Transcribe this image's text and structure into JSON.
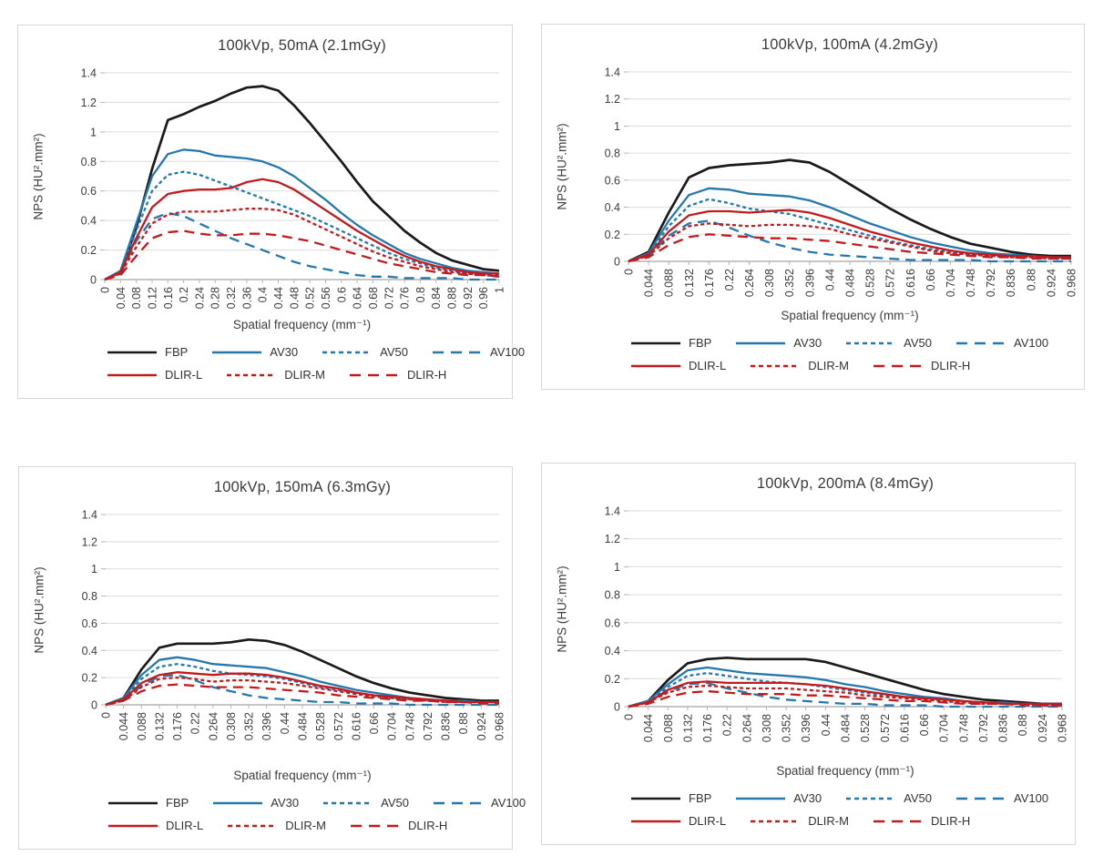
{
  "figure": {
    "description": "Noise power spectrum (NPS) curves for four CT dose levels comparing FBP, ASiR-V and DLIR reconstructions"
  },
  "legend": {
    "rows": [
      [
        "FBP",
        "AV30",
        "AV50",
        "AV100"
      ],
      [
        "DLIR-L",
        "DLIR-M",
        "DLIR-H"
      ]
    ],
    "styles": {
      "FBP": {
        "color": "#1a1a1a",
        "dash": "solid"
      },
      "AV30": {
        "color": "#2478ad",
        "dash": "solid"
      },
      "AV50": {
        "color": "#2478ad",
        "dash": "short-dash"
      },
      "AV100": {
        "color": "#2478ad",
        "dash": "long-dash"
      },
      "DLIR-L": {
        "color": "#c21b1e",
        "dash": "solid"
      },
      "DLIR-M": {
        "color": "#c21b1e",
        "dash": "short-dash"
      },
      "DLIR-H": {
        "color": "#c21b1e",
        "dash": "long-dash"
      }
    }
  },
  "chart_data": [
    {
      "type": "line",
      "title": "100kVp, 50mA (2.1mGy)",
      "xlabel": "Spatial frequency (mm⁻¹)",
      "ylabel": "NPS (HU².mm²)",
      "ylim": [
        0,
        1.4
      ],
      "yticks": [
        "0",
        "0.2",
        "0.4",
        "0.6",
        "0.8",
        "1",
        "1.2",
        "1.4"
      ],
      "grid": true,
      "legend_position": "bottom",
      "x": [
        0,
        0.04,
        0.08,
        0.12,
        0.16,
        0.2,
        0.24,
        0.28,
        0.32,
        0.36,
        0.4,
        0.44,
        0.48,
        0.52,
        0.56,
        0.6,
        0.64,
        0.68,
        0.72,
        0.76,
        0.8,
        0.84,
        0.88,
        0.92,
        0.96,
        1
      ],
      "xticks": [
        "0",
        "0.04",
        "0.08",
        "0.12",
        "0.16",
        "0.2",
        "0.24",
        "0.28",
        "0.32",
        "0.36",
        "0.4",
        "0.44",
        "0.48",
        "0.52",
        "0.56",
        "0.6",
        "0.64",
        "0.68",
        "0.72",
        "0.76",
        "0.8",
        "0.84",
        "0.88",
        "0.92",
        "0.96",
        "1"
      ],
      "series": [
        {
          "name": "FBP",
          "values": [
            0,
            0.05,
            0.35,
            0.75,
            1.08,
            1.12,
            1.17,
            1.21,
            1.26,
            1.3,
            1.31,
            1.28,
            1.18,
            1.06,
            0.93,
            0.8,
            0.66,
            0.53,
            0.43,
            0.33,
            0.25,
            0.18,
            0.13,
            0.1,
            0.07,
            0.06
          ]
        },
        {
          "name": "AV30",
          "values": [
            0,
            0.06,
            0.38,
            0.7,
            0.85,
            0.88,
            0.87,
            0.84,
            0.83,
            0.82,
            0.8,
            0.76,
            0.7,
            0.62,
            0.54,
            0.45,
            0.37,
            0.3,
            0.24,
            0.18,
            0.14,
            0.11,
            0.08,
            0.06,
            0.05,
            0.04
          ]
        },
        {
          "name": "AV50",
          "values": [
            0,
            0.05,
            0.33,
            0.6,
            0.71,
            0.73,
            0.71,
            0.67,
            0.63,
            0.59,
            0.55,
            0.51,
            0.47,
            0.43,
            0.38,
            0.33,
            0.28,
            0.23,
            0.18,
            0.14,
            0.11,
            0.08,
            0.06,
            0.04,
            0.03,
            0.02
          ]
        },
        {
          "name": "AV100",
          "values": [
            0,
            0.04,
            0.26,
            0.41,
            0.45,
            0.43,
            0.38,
            0.33,
            0.28,
            0.24,
            0.2,
            0.16,
            0.12,
            0.09,
            0.07,
            0.05,
            0.03,
            0.02,
            0.02,
            0.01,
            0.01,
            0.01,
            0.01,
            0,
            0,
            0
          ]
        },
        {
          "name": "DLIR-L",
          "values": [
            0,
            0.05,
            0.28,
            0.49,
            0.58,
            0.6,
            0.61,
            0.61,
            0.62,
            0.66,
            0.68,
            0.66,
            0.61,
            0.54,
            0.47,
            0.4,
            0.33,
            0.27,
            0.21,
            0.16,
            0.12,
            0.09,
            0.07,
            0.05,
            0.04,
            0.04
          ]
        },
        {
          "name": "DLIR-M",
          "values": [
            0,
            0.04,
            0.22,
            0.38,
            0.44,
            0.46,
            0.46,
            0.46,
            0.47,
            0.48,
            0.48,
            0.47,
            0.44,
            0.39,
            0.34,
            0.29,
            0.24,
            0.19,
            0.15,
            0.12,
            0.09,
            0.07,
            0.05,
            0.04,
            0.03,
            0.03
          ]
        },
        {
          "name": "DLIR-H",
          "values": [
            0,
            0.03,
            0.16,
            0.28,
            0.32,
            0.33,
            0.31,
            0.3,
            0.3,
            0.31,
            0.31,
            0.3,
            0.28,
            0.26,
            0.23,
            0.2,
            0.17,
            0.14,
            0.11,
            0.09,
            0.07,
            0.05,
            0.04,
            0.03,
            0.03,
            0.02
          ]
        }
      ]
    },
    {
      "type": "line",
      "title": "100kVp, 100mA (4.2mGy)",
      "xlabel": "Spatial frequency (mm⁻¹)",
      "ylabel": "NPS (HU².mm²)",
      "ylim": [
        0,
        1.4
      ],
      "yticks": [
        "0",
        "0.2",
        "0.4",
        "0.6",
        "0.8",
        "1",
        "1.2",
        "1.4"
      ],
      "grid": true,
      "legend_position": "bottom",
      "x": [
        0,
        0.044,
        0.088,
        0.132,
        0.176,
        0.22,
        0.264,
        0.308,
        0.352,
        0.396,
        0.44,
        0.484,
        0.528,
        0.572,
        0.616,
        0.66,
        0.704,
        0.748,
        0.792,
        0.836,
        0.88,
        0.924,
        0.968
      ],
      "xticks": [
        "0",
        "0.044",
        "0.088",
        "0.132",
        "0.176",
        "0.22",
        "0.264",
        "0.308",
        "0.352",
        "0.396",
        "0.44",
        "0.484",
        "0.528",
        "0.572",
        "0.616",
        "0.66",
        "0.704",
        "0.748",
        "0.792",
        "0.836",
        "0.88",
        "0.924",
        "0.968"
      ],
      "series": [
        {
          "name": "FBP",
          "values": [
            0,
            0.07,
            0.36,
            0.62,
            0.69,
            0.71,
            0.72,
            0.73,
            0.75,
            0.73,
            0.66,
            0.57,
            0.48,
            0.39,
            0.31,
            0.24,
            0.18,
            0.13,
            0.1,
            0.07,
            0.05,
            0.04,
            0.04
          ]
        },
        {
          "name": "AV30",
          "values": [
            0,
            0.06,
            0.3,
            0.49,
            0.54,
            0.53,
            0.5,
            0.49,
            0.48,
            0.45,
            0.4,
            0.34,
            0.28,
            0.23,
            0.18,
            0.14,
            0.11,
            0.08,
            0.06,
            0.05,
            0.04,
            0.03,
            0.03
          ]
        },
        {
          "name": "AV50",
          "values": [
            0,
            0.05,
            0.26,
            0.41,
            0.46,
            0.43,
            0.39,
            0.37,
            0.35,
            0.31,
            0.27,
            0.23,
            0.19,
            0.15,
            0.12,
            0.09,
            0.07,
            0.05,
            0.04,
            0.03,
            0.03,
            0.02,
            0.02
          ]
        },
        {
          "name": "AV100",
          "values": [
            0,
            0.04,
            0.19,
            0.28,
            0.3,
            0.25,
            0.19,
            0.14,
            0.1,
            0.07,
            0.05,
            0.04,
            0.03,
            0.02,
            0.01,
            0.01,
            0.01,
            0.01,
            0,
            0,
            0,
            0,
            0
          ]
        },
        {
          "name": "DLIR-L",
          "values": [
            0,
            0.05,
            0.22,
            0.34,
            0.37,
            0.37,
            0.36,
            0.37,
            0.38,
            0.36,
            0.32,
            0.27,
            0.22,
            0.18,
            0.14,
            0.11,
            0.08,
            0.06,
            0.05,
            0.04,
            0.04,
            0.03,
            0.03
          ]
        },
        {
          "name": "DLIR-M",
          "values": [
            0,
            0.04,
            0.17,
            0.26,
            0.28,
            0.27,
            0.26,
            0.27,
            0.27,
            0.26,
            0.24,
            0.2,
            0.17,
            0.14,
            0.11,
            0.08,
            0.06,
            0.05,
            0.04,
            0.03,
            0.03,
            0.02,
            0.02
          ]
        },
        {
          "name": "DLIR-H",
          "values": [
            0,
            0.03,
            0.12,
            0.18,
            0.2,
            0.19,
            0.18,
            0.17,
            0.17,
            0.16,
            0.15,
            0.13,
            0.11,
            0.09,
            0.07,
            0.06,
            0.05,
            0.04,
            0.03,
            0.03,
            0.02,
            0.02,
            0.02
          ]
        }
      ]
    },
    {
      "type": "line",
      "title": "100kVp, 150mA (6.3mGy)",
      "xlabel": "Spatial frequency (mm⁻¹)",
      "ylabel": "NPS (HU².mm²)",
      "ylim": [
        0,
        1.4
      ],
      "yticks": [
        "0",
        "0.2",
        "0.4",
        "0.6",
        "0.8",
        "1",
        "1.2",
        "1.4"
      ],
      "grid": true,
      "legend_position": "bottom",
      "x": [
        0,
        0.044,
        0.088,
        0.132,
        0.176,
        0.22,
        0.264,
        0.308,
        0.352,
        0.396,
        0.44,
        0.484,
        0.528,
        0.572,
        0.616,
        0.66,
        0.704,
        0.748,
        0.792,
        0.836,
        0.88,
        0.924,
        0.968
      ],
      "xticks": [
        "0",
        "0.044",
        "0.088",
        "0.132",
        "0.176",
        "0.22",
        "0.264",
        "0.308",
        "0.352",
        "0.396",
        "0.44",
        "0.484",
        "0.528",
        "0.572",
        "0.616",
        "0.66",
        "0.704",
        "0.748",
        "0.792",
        "0.836",
        "0.88",
        "0.924",
        "0.968"
      ],
      "series": [
        {
          "name": "FBP",
          "values": [
            0,
            0.05,
            0.26,
            0.42,
            0.45,
            0.45,
            0.45,
            0.46,
            0.48,
            0.47,
            0.44,
            0.39,
            0.33,
            0.27,
            0.21,
            0.16,
            0.12,
            0.09,
            0.07,
            0.05,
            0.04,
            0.03,
            0.03
          ]
        },
        {
          "name": "AV30",
          "values": [
            0,
            0.05,
            0.22,
            0.33,
            0.35,
            0.33,
            0.3,
            0.29,
            0.28,
            0.27,
            0.24,
            0.21,
            0.17,
            0.14,
            0.11,
            0.09,
            0.07,
            0.05,
            0.04,
            0.03,
            0.03,
            0.02,
            0.02
          ]
        },
        {
          "name": "AV50",
          "values": [
            0,
            0.04,
            0.19,
            0.28,
            0.3,
            0.28,
            0.25,
            0.23,
            0.22,
            0.21,
            0.19,
            0.16,
            0.13,
            0.11,
            0.09,
            0.07,
            0.05,
            0.04,
            0.03,
            0.03,
            0.02,
            0.02,
            0.02
          ]
        },
        {
          "name": "AV100",
          "values": [
            0,
            0.03,
            0.14,
            0.21,
            0.22,
            0.18,
            0.13,
            0.1,
            0.07,
            0.05,
            0.04,
            0.03,
            0.02,
            0.02,
            0.01,
            0.01,
            0.01,
            0,
            0,
            0,
            0,
            0,
            0
          ]
        },
        {
          "name": "DLIR-L",
          "values": [
            0,
            0.04,
            0.16,
            0.22,
            0.24,
            0.23,
            0.22,
            0.23,
            0.23,
            0.22,
            0.2,
            0.17,
            0.14,
            0.12,
            0.09,
            0.07,
            0.06,
            0.05,
            0.04,
            0.03,
            0.02,
            0.02,
            0.02
          ]
        },
        {
          "name": "DLIR-M",
          "values": [
            0,
            0.03,
            0.13,
            0.19,
            0.2,
            0.19,
            0.17,
            0.18,
            0.18,
            0.17,
            0.16,
            0.14,
            0.12,
            0.1,
            0.08,
            0.06,
            0.05,
            0.04,
            0.03,
            0.02,
            0.02,
            0.02,
            0.02
          ]
        },
        {
          "name": "DLIR-H",
          "values": [
            0,
            0.03,
            0.1,
            0.14,
            0.15,
            0.14,
            0.13,
            0.13,
            0.13,
            0.12,
            0.11,
            0.1,
            0.09,
            0.07,
            0.06,
            0.05,
            0.04,
            0.03,
            0.03,
            0.02,
            0.02,
            0.01,
            0.01
          ]
        }
      ]
    },
    {
      "type": "line",
      "title": "100kVp, 200mA (8.4mGy)",
      "xlabel": "Spatial frequency (mm⁻¹)",
      "ylabel": "NPS (HU².mm²)",
      "ylim": [
        0,
        1.4
      ],
      "yticks": [
        "0",
        "0.2",
        "0.4",
        "0.6",
        "0.8",
        "1",
        "1.2",
        "1.4"
      ],
      "grid": true,
      "legend_position": "bottom",
      "x": [
        0,
        0.044,
        0.088,
        0.132,
        0.176,
        0.22,
        0.264,
        0.308,
        0.352,
        0.396,
        0.44,
        0.484,
        0.528,
        0.572,
        0.616,
        0.66,
        0.704,
        0.748,
        0.792,
        0.836,
        0.88,
        0.924,
        0.968
      ],
      "xticks": [
        "0",
        "0.044",
        "0.088",
        "0.132",
        "0.176",
        "0.22",
        "0.264",
        "0.308",
        "0.352",
        "0.396",
        "0.44",
        "0.484",
        "0.528",
        "0.572",
        "0.616",
        "0.66",
        "0.704",
        "0.748",
        "0.792",
        "0.836",
        "0.88",
        "0.924",
        "0.968"
      ],
      "series": [
        {
          "name": "FBP",
          "values": [
            0,
            0.04,
            0.19,
            0.31,
            0.34,
            0.35,
            0.34,
            0.34,
            0.34,
            0.34,
            0.32,
            0.28,
            0.24,
            0.2,
            0.16,
            0.12,
            0.09,
            0.07,
            0.05,
            0.04,
            0.03,
            0.02,
            0.02
          ]
        },
        {
          "name": "AV30",
          "values": [
            0,
            0.04,
            0.16,
            0.26,
            0.28,
            0.26,
            0.24,
            0.23,
            0.22,
            0.21,
            0.19,
            0.16,
            0.14,
            0.11,
            0.09,
            0.07,
            0.06,
            0.04,
            0.03,
            0.03,
            0.02,
            0.02,
            0.02
          ]
        },
        {
          "name": "AV50",
          "values": [
            0,
            0.03,
            0.14,
            0.22,
            0.24,
            0.22,
            0.2,
            0.18,
            0.17,
            0.16,
            0.14,
            0.12,
            0.1,
            0.08,
            0.07,
            0.05,
            0.04,
            0.03,
            0.03,
            0.02,
            0.02,
            0.01,
            0.01
          ]
        },
        {
          "name": "AV100",
          "values": [
            0,
            0.03,
            0.11,
            0.16,
            0.17,
            0.13,
            0.1,
            0.07,
            0.05,
            0.04,
            0.03,
            0.02,
            0.02,
            0.01,
            0.01,
            0.01,
            0,
            0,
            0,
            0,
            0,
            0,
            0
          ]
        },
        {
          "name": "DLIR-L",
          "values": [
            0,
            0.03,
            0.12,
            0.17,
            0.18,
            0.17,
            0.17,
            0.17,
            0.17,
            0.16,
            0.15,
            0.13,
            0.11,
            0.09,
            0.07,
            0.06,
            0.05,
            0.04,
            0.03,
            0.02,
            0.02,
            0.02,
            0.02
          ]
        },
        {
          "name": "DLIR-M",
          "values": [
            0,
            0.03,
            0.1,
            0.14,
            0.15,
            0.14,
            0.13,
            0.13,
            0.13,
            0.12,
            0.11,
            0.1,
            0.08,
            0.07,
            0.06,
            0.05,
            0.04,
            0.03,
            0.02,
            0.02,
            0.02,
            0.01,
            0.01
          ]
        },
        {
          "name": "DLIR-H",
          "values": [
            0,
            0.02,
            0.07,
            0.1,
            0.11,
            0.1,
            0.09,
            0.09,
            0.09,
            0.08,
            0.08,
            0.07,
            0.06,
            0.05,
            0.04,
            0.04,
            0.03,
            0.02,
            0.02,
            0.02,
            0.01,
            0.01,
            0.01
          ]
        }
      ]
    }
  ]
}
